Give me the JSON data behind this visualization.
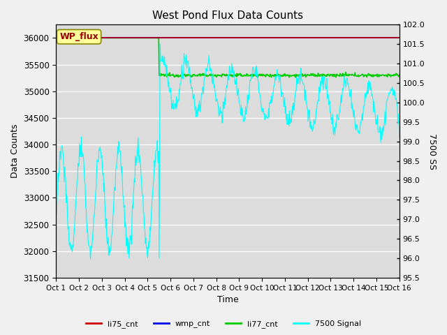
{
  "title": "West Pond Flux Data Counts",
  "xlabel": "Time",
  "ylabel_left": "Data Counts",
  "ylabel_right": "7500 SS",
  "fig_facecolor": "#f0f0f0",
  "plot_bg_color": "#dcdcdc",
  "ylim_left": [
    31500,
    36250
  ],
  "ylim_right": [
    95.5,
    102.0
  ],
  "yticks_left": [
    31500,
    32000,
    32500,
    33000,
    33500,
    34000,
    34500,
    35000,
    35500,
    36000
  ],
  "yticks_right": [
    95.5,
    96.0,
    96.5,
    97.0,
    97.5,
    98.0,
    98.5,
    99.0,
    99.5,
    100.0,
    100.5,
    101.0,
    101.5,
    102.0
  ],
  "xtick_labels": [
    "Oct 1",
    "Oct 2",
    "Oct 3",
    "Oct 4",
    "Oct 5",
    "Oct 6",
    "Oct 7",
    "Oct 8",
    "Oct 9",
    "Oct 10",
    "Oct 11",
    "Oct 12",
    "Oct 13",
    "Oct 14",
    "Oct 15",
    "Oct 16"
  ],
  "legend_labels": [
    "li75_cnt",
    "wmp_cnt",
    "li77_cnt",
    "7500 Signal"
  ],
  "legend_colors": [
    "#cc0000",
    "#0000cc",
    "#00cc00",
    "#00cccc"
  ],
  "wp_flux_label": "WP_flux",
  "wp_flux_color": "#990000",
  "wp_flux_bg": "#ffff99",
  "grid_color": "#ffffff",
  "n_points": 720,
  "oct5_day": 4.5,
  "total_days": 15
}
